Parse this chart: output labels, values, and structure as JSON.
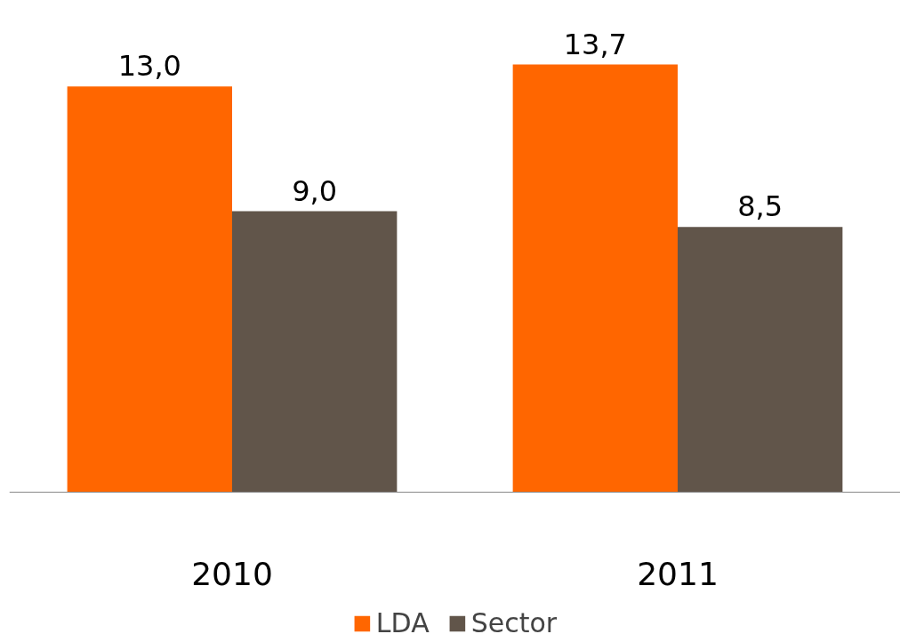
{
  "chart_data": {
    "type": "bar",
    "categories": [
      "2010",
      "2011"
    ],
    "series": [
      {
        "name": "LDA",
        "color": "#ff6600",
        "values": [
          13.0,
          13.7
        ],
        "value_labels": [
          "13,0",
          "13,7"
        ]
      },
      {
        "name": "Sector",
        "color": "#61554a",
        "values": [
          9.0,
          8.5
        ],
        "value_labels": [
          "9,0",
          "8,5"
        ]
      }
    ],
    "grid": false,
    "legend": "bottom"
  }
}
